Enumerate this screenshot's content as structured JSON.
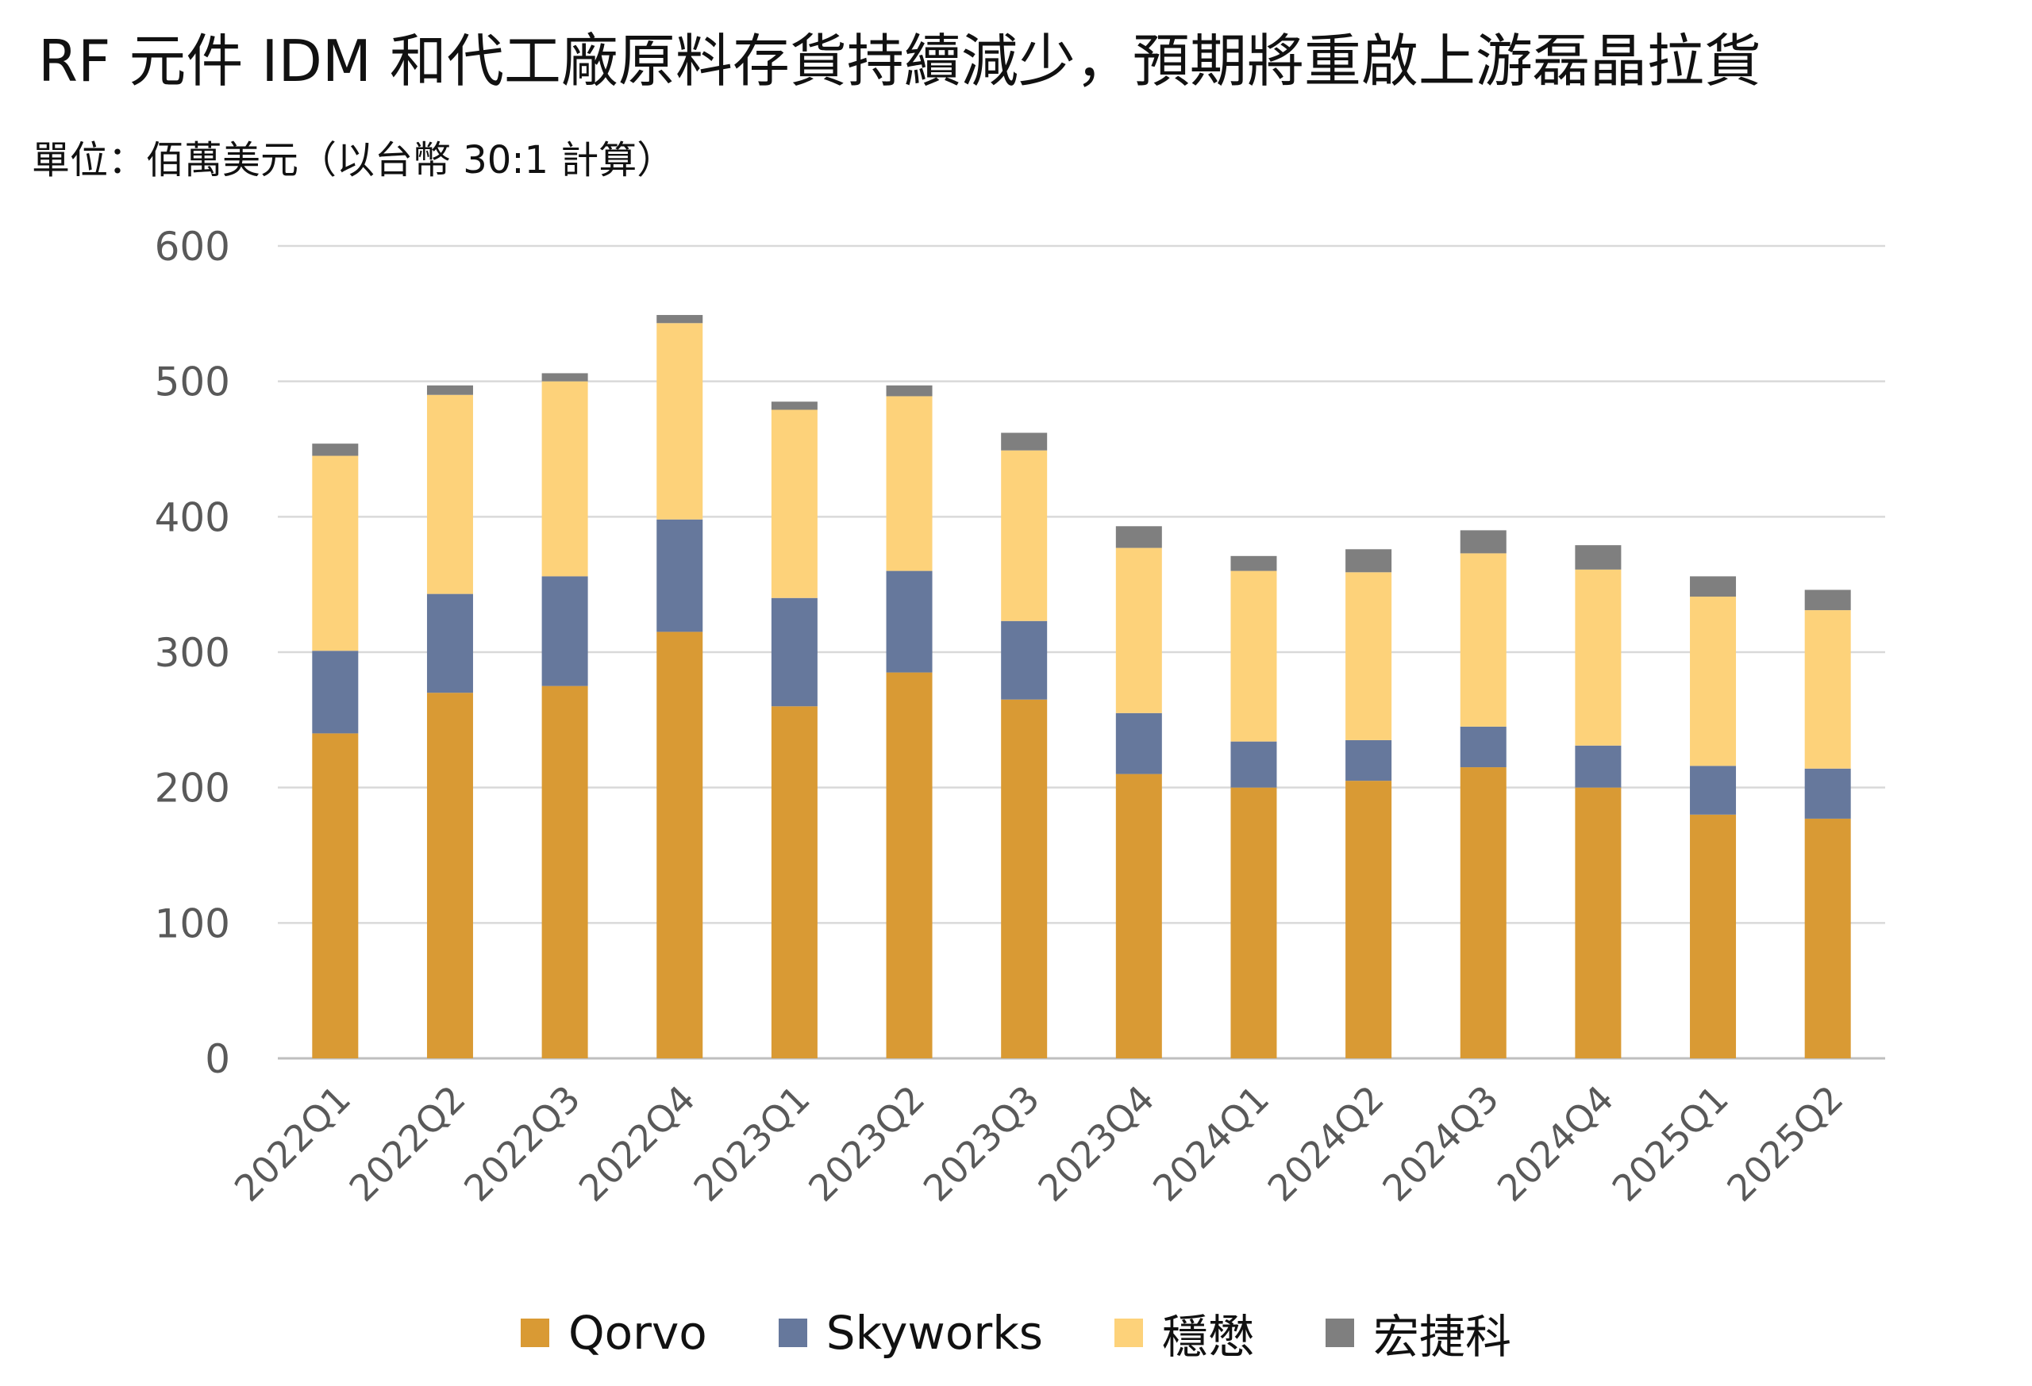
{
  "header": {
    "title": "RF 元件 IDM 和代工廠原料存貨持續減少，預期將重啟上游磊晶拉貨",
    "subtitle": "單位：佰萬美元（以台幣 30:1 計算）"
  },
  "chart_data": {
    "type": "bar",
    "stacked": true,
    "title": "RF 元件 IDM 和代工廠原料存貨持續減少，預期將重啟上游磊晶拉貨",
    "subtitle": "單位：佰萬美元（以台幣 30:1 計算）",
    "xlabel": "",
    "ylabel": "",
    "ylim": [
      0,
      600
    ],
    "yticks": [
      "0",
      "100",
      "200",
      "300",
      "400",
      "500",
      "600"
    ],
    "grid": true,
    "legend_position": "bottom",
    "categories": [
      "2022Q1",
      "2022Q2",
      "2022Q3",
      "2022Q4",
      "2023Q1",
      "2023Q2",
      "2023Q3",
      "2023Q4",
      "2024Q1",
      "2024Q2",
      "2024Q3",
      "2024Q4",
      "2025Q1",
      "2025Q2"
    ],
    "series": [
      {
        "name": "Qorvo",
        "color": "#D99A34",
        "values": [
          240,
          270,
          275,
          315,
          260,
          285,
          265,
          210,
          200,
          205,
          215,
          200,
          180,
          177
        ]
      },
      {
        "name": "Skyworks",
        "color": "#66789C",
        "values": [
          61,
          73,
          81,
          83,
          80,
          75,
          58,
          45,
          34,
          30,
          30,
          31,
          36,
          37
        ]
      },
      {
        "name": "穩懋",
        "color": "#FDD27A",
        "values": [
          144,
          147,
          144,
          145,
          139,
          129,
          126,
          122,
          126,
          124,
          128,
          130,
          125,
          117
        ]
      },
      {
        "name": "宏捷科",
        "color": "#7F7F7F",
        "values": [
          9,
          7,
          6,
          6,
          6,
          8,
          13,
          16,
          11,
          17,
          17,
          18,
          15,
          15
        ]
      }
    ]
  }
}
